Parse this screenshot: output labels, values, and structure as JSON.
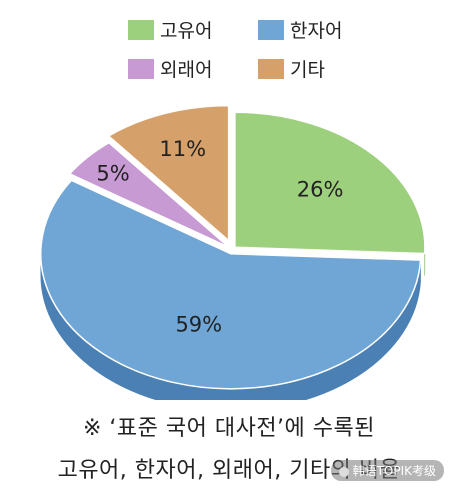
{
  "chart_data": {
    "type": "pie",
    "categories": [
      "고유어",
      "한자어",
      "외래어",
      "기타"
    ],
    "values": [
      26,
      59,
      5,
      11
    ],
    "value_labels": [
      "26%",
      "59%",
      "5%",
      "11%"
    ],
    "colors": [
      "#9dd07c",
      "#6fa6d6",
      "#c79ad4",
      "#d6a06a"
    ],
    "dark_colors": [
      "#74ad55",
      "#4a80b3",
      "#9d6aae",
      "#a97743"
    ],
    "exploded": "기타",
    "legend_position": "top",
    "title": ""
  },
  "caption": {
    "line1": "※ ‘표준 국어 대사전’에 수록된",
    "line2": "고유어, 한자어, 외래어, 기타의 비율"
  },
  "watermark": "韩语TOPIK考级"
}
